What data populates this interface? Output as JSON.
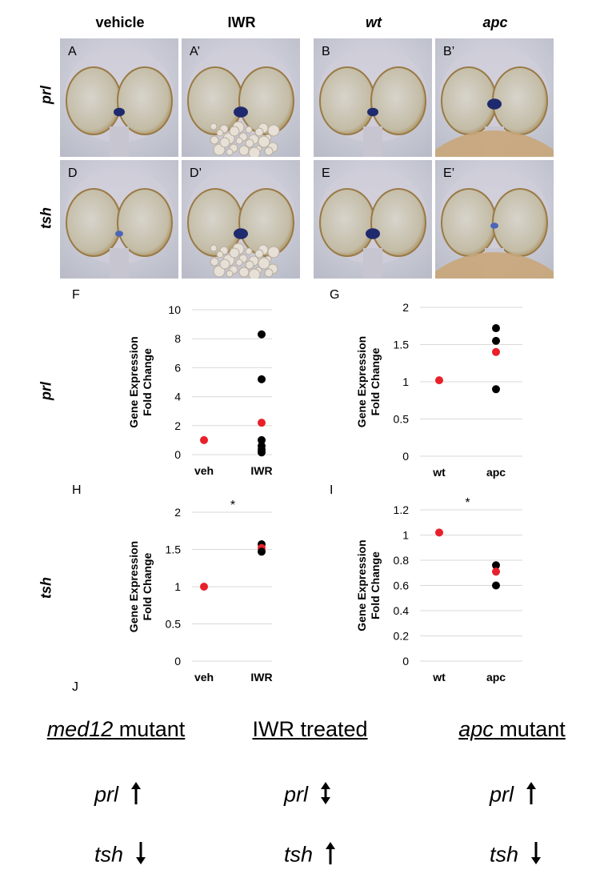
{
  "column_headers": [
    "vehicle",
    "IWR",
    "wt",
    "apc"
  ],
  "row_headers": [
    "prl",
    "tsh"
  ],
  "photo_panels": [
    {
      "label": "A",
      "stain": "medium"
    },
    {
      "label": "A’",
      "stain": "strong"
    },
    {
      "label": "B",
      "stain": "medium"
    },
    {
      "label": "B’",
      "stain": "strong"
    },
    {
      "label": "D",
      "stain": "weak"
    },
    {
      "label": "D’",
      "stain": "strong"
    },
    {
      "label": "E",
      "stain": "strong"
    },
    {
      "label": "E’",
      "stain": "weak"
    }
  ],
  "chart_row_labels": [
    "prl",
    "tsh"
  ],
  "chart_data": [
    {
      "panel": "F",
      "type": "scatter",
      "ylabel": "Gene Expression Fold Change",
      "categories": [
        "veh",
        "IWR"
      ],
      "yticks": [
        "0",
        "2",
        "4",
        "6",
        "8",
        "10"
      ],
      "ylim": [
        0,
        10
      ],
      "points": [
        {
          "x": "veh",
          "y": 1.0,
          "color": "#e8202a"
        },
        {
          "x": "IWR",
          "y": 8.3,
          "color": "#000000"
        },
        {
          "x": "IWR",
          "y": 5.2,
          "color": "#000000"
        },
        {
          "x": "IWR",
          "y": 2.2,
          "color": "#e8202a"
        },
        {
          "x": "IWR",
          "y": 1.0,
          "color": "#000000"
        },
        {
          "x": "IWR",
          "y": 0.6,
          "color": "#000000"
        },
        {
          "x": "IWR",
          "y": 0.35,
          "color": "#000000"
        },
        {
          "x": "IWR",
          "y": 0.15,
          "color": "#000000"
        }
      ],
      "annotation": ""
    },
    {
      "panel": "G",
      "type": "scatter",
      "ylabel": "Gene Expression Fold Change",
      "categories": [
        "wt",
        "apc"
      ],
      "yticks": [
        "0",
        "0.5",
        "1",
        "1.5",
        "2"
      ],
      "ylim": [
        0,
        2
      ],
      "points": [
        {
          "x": "wt",
          "y": 1.02,
          "color": "#e8202a"
        },
        {
          "x": "apc",
          "y": 1.72,
          "color": "#000000"
        },
        {
          "x": "apc",
          "y": 1.55,
          "color": "#000000"
        },
        {
          "x": "apc",
          "y": 1.4,
          "color": "#e8202a"
        },
        {
          "x": "apc",
          "y": 0.9,
          "color": "#000000"
        }
      ],
      "annotation": ""
    },
    {
      "panel": "H",
      "type": "scatter",
      "ylabel": "Gene Expression Fold Change",
      "categories": [
        "veh",
        "IWR"
      ],
      "yticks": [
        "0",
        "0.5",
        "1",
        "1.5",
        "2"
      ],
      "ylim": [
        0,
        2
      ],
      "points": [
        {
          "x": "veh",
          "y": 1.0,
          "color": "#e8202a"
        },
        {
          "x": "IWR",
          "y": 1.57,
          "color": "#000000"
        },
        {
          "x": "IWR",
          "y": 1.52,
          "color": "#e8202a"
        },
        {
          "x": "IWR",
          "y": 1.47,
          "color": "#000000"
        }
      ],
      "annotation": "*"
    },
    {
      "panel": "I",
      "type": "scatter",
      "ylabel": "Gene Expression Fold Change",
      "categories": [
        "wt",
        "apc"
      ],
      "yticks": [
        "0",
        "0.2",
        "0.4",
        "0.6",
        "0.8",
        "1",
        "1.2"
      ],
      "ylim": [
        0,
        1.2
      ],
      "points": [
        {
          "x": "wt",
          "y": 1.02,
          "color": "#e8202a"
        },
        {
          "x": "apc",
          "y": 0.76,
          "color": "#000000"
        },
        {
          "x": "apc",
          "y": 0.71,
          "color": "#e8202a"
        },
        {
          "x": "apc",
          "y": 0.6,
          "color": "#000000"
        }
      ],
      "annotation": "*"
    }
  ],
  "summary": {
    "label": "J",
    "columns": [
      {
        "title_italic": "med12",
        "title_rest": " mutant",
        "prl": "prl",
        "prl_arrow": "up",
        "tsh": "tsh",
        "tsh_arrow": "down"
      },
      {
        "title_italic": "",
        "title_rest": "IWR treated",
        "prl": "prl",
        "prl_arrow": "both",
        "tsh": "tsh",
        "tsh_arrow": "up"
      },
      {
        "title_italic": "apc",
        "title_rest": " mutant",
        "prl": "prl",
        "prl_arrow": "up",
        "tsh": "tsh",
        "tsh_arrow": "down"
      }
    ]
  }
}
